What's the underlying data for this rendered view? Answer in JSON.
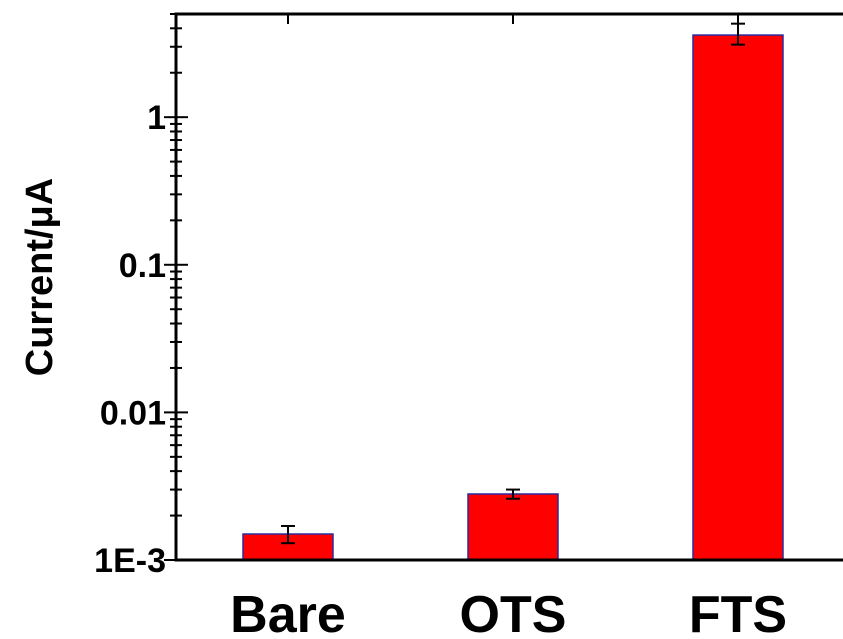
{
  "chart_data": {
    "type": "bar",
    "categories": [
      "Bare",
      "OTS",
      "FTS"
    ],
    "values": [
      0.0015,
      0.0028,
      3.6
    ],
    "errors": [
      {
        "low": 0.0013,
        "high": 0.0017
      },
      {
        "low": 0.0026,
        "high": 0.003
      },
      {
        "low": 3.1,
        "high": 4.3
      }
    ],
    "ylabel": "Current/μA",
    "yscale": "log",
    "ylim": [
      0.001,
      5
    ],
    "yticks": [
      {
        "value": 0.001,
        "label": "1E-3"
      },
      {
        "value": 0.01,
        "label": "0.01"
      },
      {
        "value": 0.1,
        "label": "0.1"
      },
      {
        "value": 1,
        "label": "1"
      }
    ],
    "grid": false,
    "colors": {
      "bar_fill": "#ff0000",
      "bar_edge": "#2b2b9e",
      "axis": "#000000"
    }
  }
}
